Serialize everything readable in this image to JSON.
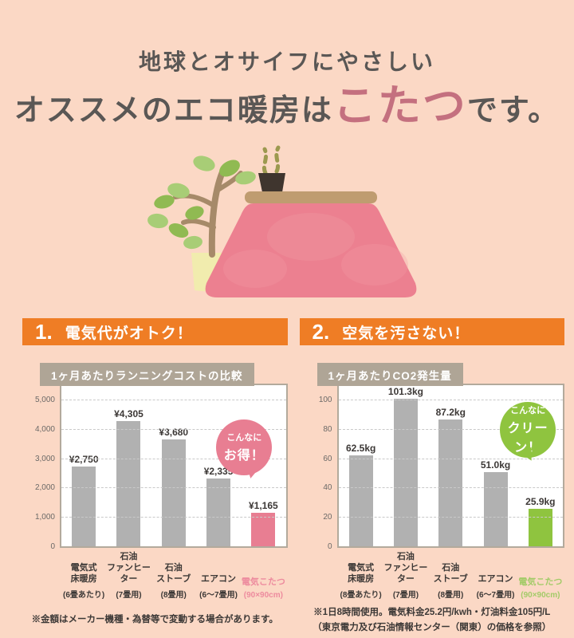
{
  "page": {
    "bg_color": "#fbd8c5",
    "accent_color": "#ef7d25",
    "title_line1": "地球とオサイフにやさしい",
    "title_line2_prefix": "オススメのエコ暖房は",
    "title_line2_highlight": "こたつ",
    "title_line2_suffix": "です。",
    "highlight_text_color": "#c4707f"
  },
  "illustration": {
    "items": [
      "potted-plant",
      "steam",
      "teacup",
      "kotatsu-table",
      "kotatsu-blanket"
    ],
    "colors": {
      "leaf_light": "#a8cd76",
      "leaf_dark": "#90ba52",
      "trunk": "#a68a69",
      "pot": "#f1ecae",
      "steam": "#9c994f",
      "cup": "#3f352e",
      "tabletop": "#bf9c70",
      "blanket": "#ec8090"
    }
  },
  "sections": [
    {
      "number": "1.",
      "heading": "電気代がオトク！",
      "badge": {
        "line1": "こんなに",
        "line2": "お得！",
        "color": "#e87e92"
      },
      "note_lines": [
        "※金額はメーカー機種・為替等で変動する場合があります。"
      ]
    },
    {
      "number": "2.",
      "heading": "空気を汚さない！",
      "badge": {
        "line1": "こんなに",
        "line2": "クリーン！",
        "color": "#8fc43f"
      },
      "note_lines": [
        "※1日8時間使用。電気料金25.2円/kwh・灯油料金105円/L",
        "（東京電力及び石油情報センター（関東）の価格を参照）"
      ]
    }
  ],
  "chart_data": [
    {
      "type": "bar",
      "title": "1ヶ月あたりランニングコストの比較",
      "unit": "(円)",
      "categories": [
        "電気式\n床暖房",
        "石油\nファンヒーター",
        "石油\nストーブ",
        "エアコン",
        "電気こたつ"
      ],
      "category_specs": [
        "(6畳あたり)",
        "(7畳用)",
        "(8畳用)",
        "(6～7畳用)",
        "(90×90cm)"
      ],
      "values": [
        2750,
        4305,
        3680,
        2335,
        1165
      ],
      "value_labels": [
        "¥2,750",
        "¥4,305",
        "¥3,680",
        "¥2,335",
        "¥1,165"
      ],
      "axis_max": 5000,
      "ticks": [
        1000,
        2000,
        3000,
        4000,
        5000
      ],
      "tick_labels": [
        "1,000",
        "2,000",
        "3,000",
        "4,000",
        "5,000"
      ],
      "zero_label": "0",
      "grid": true,
      "legend": "none",
      "bar_color": "#b1b1b1",
      "highlight_index": 4,
      "highlight_color": "#e87e92",
      "highlight_label_color": "#ed8b9e"
    },
    {
      "type": "bar",
      "title": "1ヶ月あたりCO2発生量",
      "unit": "(kg)",
      "categories": [
        "電気式\n床暖房",
        "石油\nファンヒーター",
        "石油\nストーブ",
        "エアコン",
        "電気こたつ"
      ],
      "category_specs": [
        "(8畳あたり)",
        "(7畳用)",
        "(8畳用)",
        "(6～7畳用)",
        "(90×90cm)"
      ],
      "values": [
        62.5,
        101.3,
        87.2,
        51.0,
        25.9
      ],
      "value_labels": [
        "62.5kg",
        "101.3kg",
        "87.2kg",
        "51.0kg",
        "25.9kg"
      ],
      "axis_max": 100,
      "ticks": [
        20,
        40,
        60,
        80,
        100
      ],
      "tick_labels": [
        "20",
        "40",
        "60",
        "80",
        "100"
      ],
      "zero_label": "0",
      "grid": true,
      "legend": "none",
      "bar_color": "#b1b1b1",
      "highlight_index": 4,
      "highlight_color": "#8fc43f",
      "highlight_label_color": "#a3cb68"
    }
  ]
}
